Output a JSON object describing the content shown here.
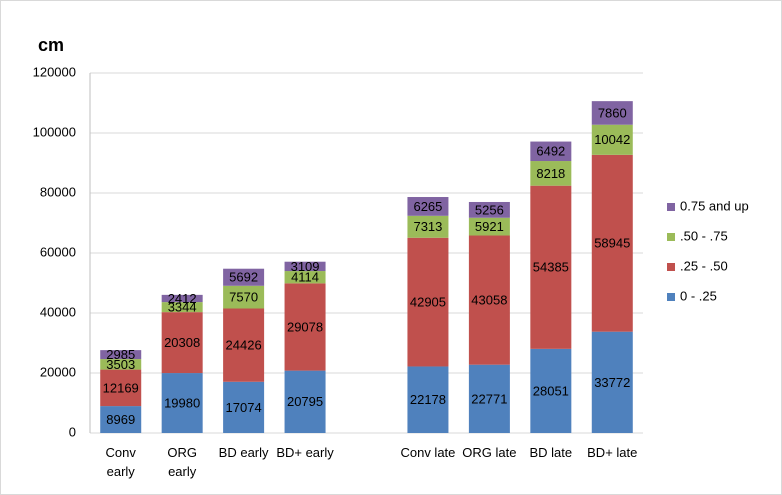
{
  "chart_data": {
    "type": "stacked_bar",
    "title": "cm",
    "categories": [
      "Conv early",
      "ORG early",
      "BD early",
      "BD+ early",
      null,
      "Conv late",
      "ORG late",
      "BD late",
      "BD+ late"
    ],
    "series": [
      {
        "name": "0 - .25",
        "color": "#4f81bd",
        "values": [
          8969,
          19980,
          17074,
          20795,
          null,
          22178,
          22771,
          28051,
          33772
        ]
      },
      {
        "name": ".25 - .50",
        "color": "#c0504d",
        "values": [
          12169,
          20308,
          24426,
          29078,
          null,
          42905,
          43058,
          54385,
          58945
        ]
      },
      {
        "name": ".50 - .75",
        "color": "#9bbb59",
        "values": [
          3503,
          3344,
          7570,
          4114,
          null,
          7313,
          5921,
          8218,
          10042
        ]
      },
      {
        "name": "0.75 and up",
        "color": "#8064a2",
        "values": [
          2985,
          2412,
          5692,
          3109,
          null,
          6265,
          5256,
          6492,
          7860
        ]
      }
    ],
    "ylim": [
      0,
      120000
    ],
    "yticks": [
      0,
      20000,
      40000,
      60000,
      80000,
      100000,
      120000
    ],
    "grid": true,
    "legend": "right"
  }
}
